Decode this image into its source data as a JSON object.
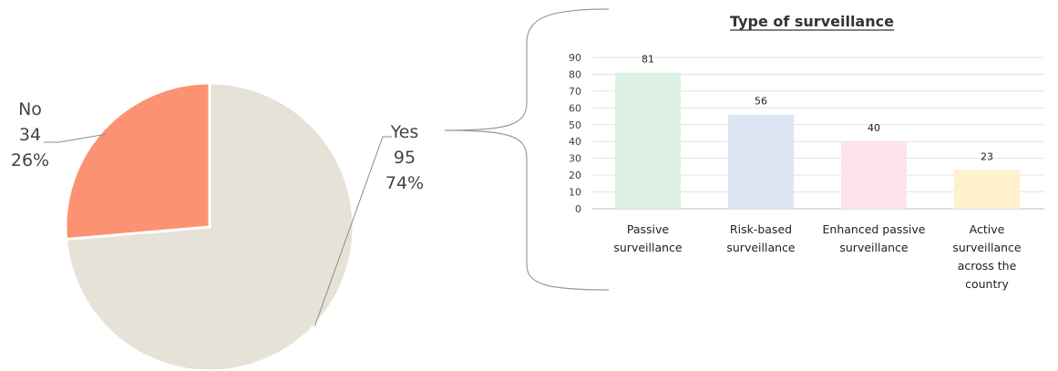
{
  "chart_data": [
    {
      "type": "pie",
      "slices": [
        {
          "label": "Yes",
          "value": 95,
          "percent": "74%",
          "color": "#E6E2D8"
        },
        {
          "label": "No",
          "value": 34,
          "percent": "26%",
          "color": "#FC9272"
        }
      ]
    },
    {
      "type": "bar",
      "title": "Type of surveillance",
      "categories": [
        [
          "Passive",
          "surveillance"
        ],
        [
          "Risk-based",
          "surveillance"
        ],
        [
          "Enhanced passive",
          "surveillance"
        ],
        [
          "Active",
          "surveillance",
          "across the",
          "country"
        ]
      ],
      "values": [
        81,
        56,
        40,
        23
      ],
      "colors": [
        "#DDF2E5",
        "#DCE6F3",
        "#FCE3EE",
        "#FFF1CC"
      ],
      "ylim": [
        0,
        90
      ],
      "yticks": [
        0,
        10,
        20,
        30,
        40,
        50,
        60,
        70,
        80,
        90
      ],
      "grid": true
    }
  ]
}
